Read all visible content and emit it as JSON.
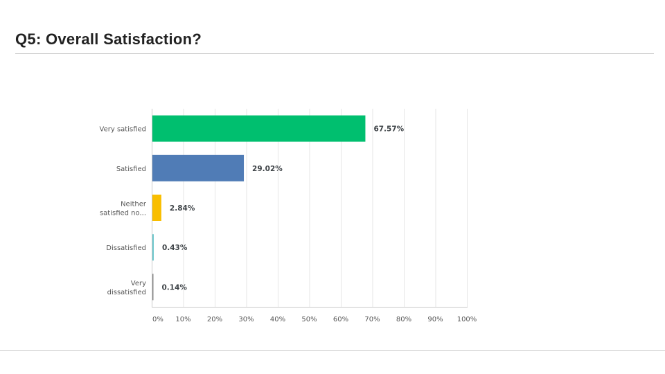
{
  "page": {
    "title": "Q5: Overall Satisfaction?"
  },
  "chart_data": {
    "type": "bar",
    "orientation": "horizontal",
    "title": "",
    "xlabel": "",
    "ylabel": "",
    "xlim": [
      0,
      100
    ],
    "grid": true,
    "categories": [
      [
        "Very satisfied"
      ],
      [
        "Satisfied"
      ],
      [
        "Neither",
        "satisfied no..."
      ],
      [
        "Dissatisfied"
      ],
      [
        "Very",
        "dissatisfied"
      ]
    ],
    "values": [
      67.57,
      29.02,
      2.84,
      0.43,
      0.14
    ],
    "value_labels": [
      "67.57%",
      "29.02%",
      "2.84%",
      "0.43%",
      "0.14%"
    ],
    "colors": [
      "#00bf6f",
      "#507cb6",
      "#f9be00",
      "#6bc8cd",
      "#8a8a8a"
    ],
    "x_ticks": [
      0,
      10,
      20,
      30,
      40,
      50,
      60,
      70,
      80,
      90,
      100
    ],
    "x_tick_labels": [
      "0%",
      "10%",
      "20%",
      "30%",
      "40%",
      "50%",
      "60%",
      "70%",
      "80%",
      "90%",
      "100%"
    ]
  }
}
